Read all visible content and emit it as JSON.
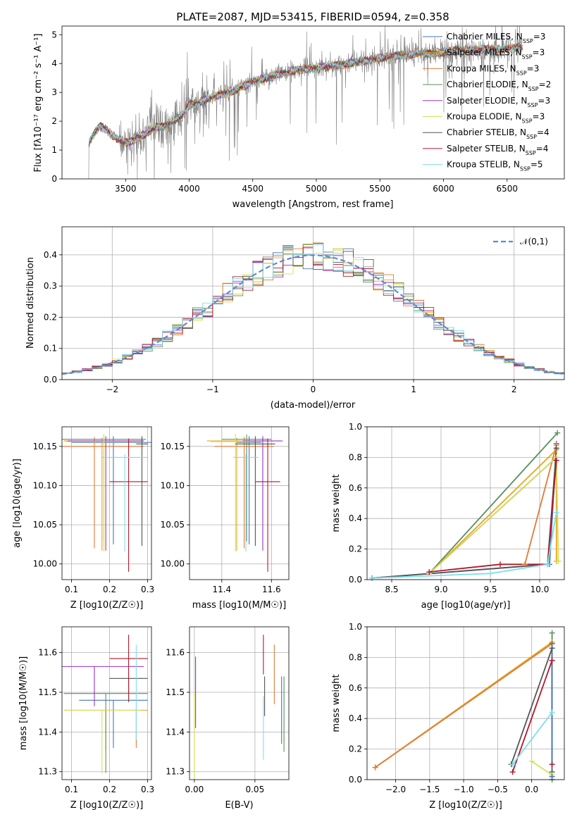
{
  "figure": {
    "title": "PLATE=2087, MJD=53415, FIBERID=0594, z=0.358"
  },
  "chart_data": [
    {
      "id": "spectrum",
      "type": "line",
      "xlabel": "wavelength [Angstrom, rest frame]",
      "ylabel": "Flux [f_λ 10^-17 erg cm^-2 s^-1 A^-1]",
      "xlim": [
        3000,
        6950
      ],
      "ylim": [
        0,
        5.3
      ],
      "xticks": [
        3500,
        4000,
        4500,
        5000,
        5500,
        6000,
        6500
      ],
      "yticks": [
        0,
        1,
        2,
        3,
        4,
        5
      ],
      "grid": false,
      "legend_position": "top-right",
      "data_color": "#808080",
      "continuum": {
        "x": [
          3210,
          3250,
          3300,
          3350,
          3400,
          3450,
          3500,
          3550,
          3600,
          3650,
          3700,
          3750,
          3800,
          3850,
          3900,
          3950,
          4000,
          4100,
          4200,
          4300,
          4400,
          4500,
          4600,
          4700,
          4800,
          4900,
          5000,
          5100,
          5200,
          5300,
          5400,
          5500,
          5600,
          5700,
          5800,
          5900,
          6000,
          6100,
          6200,
          6300,
          6400,
          6500,
          6600
        ],
        "y": [
          1.25,
          1.55,
          1.82,
          1.7,
          1.5,
          1.35,
          1.25,
          1.3,
          1.45,
          1.55,
          1.7,
          1.8,
          1.85,
          1.9,
          2.1,
          2.2,
          2.55,
          2.7,
          2.85,
          3.0,
          3.15,
          3.35,
          3.5,
          3.6,
          3.75,
          3.8,
          3.85,
          3.9,
          3.95,
          4.05,
          4.1,
          4.2,
          4.25,
          4.3,
          4.35,
          4.35,
          4.4,
          4.45,
          4.45,
          4.5,
          4.5,
          4.5,
          4.55
        ]
      },
      "series": [
        {
          "name": "Chabrier MILES, N_SSP=3",
          "color": "#4575b4"
        },
        {
          "name": "Salpeter MILES, N_SSP=3",
          "color": "#e6a817"
        },
        {
          "name": "Kroupa MILES, N_SSP=3",
          "color": "#e07b39"
        },
        {
          "name": "Chabrier ELODIE, N_SSP=2",
          "color": "#5a8f5a"
        },
        {
          "name": "Salpeter ELODIE, N_SSP=3",
          "color": "#9b30c8"
        },
        {
          "name": "Kroupa ELODIE, N_SSP=3",
          "color": "#d4e157"
        },
        {
          "name": "Chabrier STELIB, N_SSP=4",
          "color": "#555555"
        },
        {
          "name": "Salpeter STELIB, N_SSP=4",
          "color": "#b2182b"
        },
        {
          "name": "Kroupa STELIB, N_SSP=5",
          "color": "#80deea"
        }
      ]
    },
    {
      "id": "residuals",
      "type": "line",
      "xlabel": "(data-model)/error",
      "ylabel": "Normed distribution",
      "xlim": [
        -2.5,
        2.5
      ],
      "ylim": [
        0,
        0.49
      ],
      "xticks": [
        -2,
        -1,
        0,
        1,
        2
      ],
      "yticks": [
        0.0,
        0.1,
        0.2,
        0.3,
        0.4
      ],
      "grid": true,
      "legend_position": "top-right",
      "reference": {
        "name": "𝒩(0,1)",
        "color": "#5b8bd6"
      }
    },
    {
      "id": "age-vs-Z",
      "type": "scatter",
      "xlabel": "Z [log10(Z/Z☉)]",
      "ylabel": "age  [log10(age/yr)]",
      "xlim": [
        0.075,
        0.31
      ],
      "ylim": [
        9.98,
        10.175
      ],
      "xticks": [
        0.1,
        0.2,
        0.3
      ],
      "yticks": [
        10.0,
        10.05,
        10.1,
        10.15
      ],
      "grid": true,
      "points": [
        {
          "series": 0,
          "x": 0.21,
          "y": 10.155,
          "xerr": 0.11,
          "yerr_lo": 0.13,
          "yerr_hi": 0.008
        },
        {
          "series": 1,
          "x": 0.18,
          "y": 10.157,
          "xerr": 0.1,
          "yerr_lo": 0.14,
          "yerr_hi": 0.004
        },
        {
          "series": 2,
          "x": 0.16,
          "y": 10.15,
          "xerr": 0.13,
          "yerr_lo": 0.13,
          "yerr_hi": 0.012
        },
        {
          "series": 3,
          "x": 0.185,
          "y": 10.159,
          "xerr": 0.11,
          "yerr_lo": 0.13,
          "yerr_hi": 0.004
        },
        {
          "series": 4,
          "x": 0.19,
          "y": 10.157,
          "xerr": 0.1,
          "yerr_lo": 0.14,
          "yerr_hi": 0.006
        },
        {
          "series": 5,
          "x": 0.185,
          "y": 10.156,
          "xerr": 0.1,
          "yerr_lo": 0.14,
          "yerr_hi": 0.01
        },
        {
          "series": 6,
          "x": 0.285,
          "y": 10.153,
          "xerr": 0.015,
          "yerr_lo": 0.13,
          "yerr_hi": 0.01
        },
        {
          "series": 7,
          "x": 0.25,
          "y": 10.105,
          "xerr": 0.05,
          "yerr_lo": 0.115,
          "yerr_hi": 0.055
        },
        {
          "series": 8,
          "x": 0.24,
          "y": 10.136,
          "xerr": 0.06,
          "yerr_lo": 0.12,
          "yerr_hi": 0.004
        }
      ]
    },
    {
      "id": "age-vs-mass",
      "type": "scatter",
      "xlabel": "mass [log10(M/M☉)]",
      "ylabel": "",
      "xlim": [
        11.27,
        11.67
      ],
      "ylim": [
        9.98,
        10.175
      ],
      "xticks": [
        11.4,
        11.6
      ],
      "yticks": [
        10.0,
        10.05,
        10.1,
        10.15
      ],
      "grid": true,
      "points": [
        {
          "series": 0,
          "x": 11.51,
          "y": 10.155,
          "xerr": 0.05,
          "yerr_lo": 0.13,
          "yerr_hi": 0.008
        },
        {
          "series": 1,
          "x": 11.46,
          "y": 10.157,
          "xerr": 0.12,
          "yerr_lo": 0.14,
          "yerr_hi": 0.004
        },
        {
          "series": 2,
          "x": 11.49,
          "y": 10.15,
          "xerr": 0.12,
          "yerr_lo": 0.13,
          "yerr_hi": 0.012
        },
        {
          "series": 3,
          "x": 11.5,
          "y": 10.159,
          "xerr": 0.1,
          "yerr_lo": 0.13,
          "yerr_hi": 0.006
        },
        {
          "series": 4,
          "x": 11.565,
          "y": 10.157,
          "xerr": 0.08,
          "yerr_lo": 0.14,
          "yerr_hi": 0.006
        },
        {
          "series": 5,
          "x": 11.455,
          "y": 10.156,
          "xerr": 0.1,
          "yerr_lo": 0.14,
          "yerr_hi": 0.01
        },
        {
          "series": 6,
          "x": 11.535,
          "y": 10.153,
          "xerr": 0.08,
          "yerr_lo": 0.13,
          "yerr_hi": 0.01
        },
        {
          "series": 7,
          "x": 11.585,
          "y": 10.105,
          "xerr": 0.05,
          "yerr_lo": 0.115,
          "yerr_hi": 0.055
        },
        {
          "series": 8,
          "x": 11.497,
          "y": 10.136,
          "xerr": 0.05,
          "yerr_lo": 0.12,
          "yerr_hi": 0.004
        }
      ]
    },
    {
      "id": "weight-vs-age",
      "type": "line",
      "xlabel": "age  [log10(age/yr)]",
      "ylabel": "mass weight",
      "xlim": [
        8.25,
        10.25
      ],
      "ylim": [
        0,
        1.0
      ],
      "xticks": [
        8.5,
        9.0,
        9.5,
        10.0
      ],
      "yticks": [
        0.0,
        0.2,
        0.4,
        0.6,
        0.8,
        1.0
      ],
      "grid": true,
      "series": [
        {
          "series": 0,
          "x": [
            8.3,
            10.1,
            10.17
          ],
          "y": [
            0.01,
            0.1,
            0.89
          ]
        },
        {
          "series": 1,
          "x": [
            8.88,
            10.17,
            10.17
          ],
          "y": [
            0.04,
            0.85,
            0.12
          ]
        },
        {
          "series": 2,
          "x": [
            9.85,
            10.17
          ],
          "y": [
            0.1,
            0.88
          ]
        },
        {
          "series": 3,
          "x": [
            8.88,
            10.18
          ],
          "y": [
            0.04,
            0.96
          ]
        },
        {
          "series": 4,
          "x": [
            8.88,
            10.17
          ],
          "y": [
            0.04,
            0.8
          ]
        },
        {
          "series": 5,
          "x": [
            8.88,
            10.17,
            10.19
          ],
          "y": [
            0.04,
            0.8,
            0.12
          ]
        },
        {
          "series": 6,
          "x": [
            8.3,
            10.08,
            10.17
          ],
          "y": [
            0.01,
            0.1,
            0.86
          ]
        },
        {
          "series": 7,
          "x": [
            8.88,
            9.6,
            10.08,
            10.17
          ],
          "y": [
            0.05,
            0.1,
            0.1,
            0.78
          ]
        },
        {
          "series": 8,
          "x": [
            8.3,
            9.5,
            10.08,
            10.17
          ],
          "y": [
            0.01,
            0.04,
            0.1,
            0.44
          ]
        }
      ]
    },
    {
      "id": "mass-vs-Z",
      "type": "scatter",
      "xlabel": "Z [log10(Z/Z☉)]",
      "ylabel": "mass [log10(M/M☉)]",
      "xlim": [
        0.075,
        0.31
      ],
      "ylim": [
        11.28,
        11.665
      ],
      "xticks": [
        0.1,
        0.2,
        0.3
      ],
      "yticks": [
        11.3,
        11.4,
        11.5,
        11.6
      ],
      "grid": true,
      "points": [
        {
          "series": 0,
          "x": 0.21,
          "y": 11.48,
          "xerr": 0.09,
          "yerr_lo": 0.12,
          "yerr_hi": 0.0
        },
        {
          "series": 1,
          "x": 0.19,
          "y": 11.455,
          "xerr": 0.11,
          "yerr_lo": 0.1,
          "yerr_hi": 0.0
        },
        {
          "series": 2,
          "x": 0.27,
          "y": 11.46,
          "xerr": 0.0,
          "yerr_lo": 0.1,
          "yerr_hi": 0.0
        },
        {
          "series": 3,
          "x": 0.19,
          "y": 11.497,
          "xerr": 0.11,
          "yerr_lo": 0.2,
          "yerr_hi": 0.0
        },
        {
          "series": 4,
          "x": 0.16,
          "y": 11.565,
          "xerr": 0.13,
          "yerr_lo": 0.1,
          "yerr_hi": 0.0
        },
        {
          "series": 5,
          "x": 0.18,
          "y": 11.455,
          "xerr": 0.1,
          "yerr_lo": 0.16,
          "yerr_hi": 0.0
        },
        {
          "series": 6,
          "x": 0.25,
          "y": 11.535,
          "xerr": 0.05,
          "yerr_lo": 0.06,
          "yerr_hi": 0.0
        },
        {
          "series": 7,
          "x": 0.25,
          "y": 11.585,
          "xerr": 0.05,
          "yerr_lo": 0.105,
          "yerr_hi": 0.06
        },
        {
          "series": 8,
          "x": 0.27,
          "y": 11.5,
          "xerr": 0.0,
          "yerr_lo": 0.12,
          "yerr_hi": 0.12
        }
      ]
    },
    {
      "id": "mass-vs-EBV",
      "type": "scatter",
      "xlabel": "E(B-V)",
      "ylabel": "",
      "xlim": [
        -0.004,
        0.078
      ],
      "ylim": [
        11.28,
        11.665
      ],
      "xticks": [
        0.0,
        0.05
      ],
      "yticks": [
        11.3,
        11.4,
        11.5,
        11.6
      ],
      "grid": true,
      "points": [
        {
          "series": 4,
          "x": 0.001,
          "y": 11.5,
          "yerr_lo": 0.09,
          "yerr_hi": 0.09
        },
        {
          "series": 5,
          "x": 0.0,
          "y": 11.4,
          "yerr_lo": 0.12,
          "yerr_hi": 0.1
        },
        {
          "series": 7,
          "x": 0.057,
          "y": 11.585,
          "yerr_lo": 0.04,
          "yerr_hi": 0.06
        },
        {
          "series": 8,
          "x": 0.057,
          "y": 11.4,
          "yerr_lo": 0.07,
          "yerr_hi": 0.09
        },
        {
          "series": 6,
          "x": 0.058,
          "y": 11.5,
          "yerr_lo": 0.06,
          "yerr_hi": 0.04
        },
        {
          "series": 2,
          "x": 0.066,
          "y": 11.55,
          "yerr_lo": 0.08,
          "yerr_hi": 0.07
        },
        {
          "series": 0,
          "x": 0.072,
          "y": 11.45,
          "yerr_lo": 0.08,
          "yerr_hi": 0.09
        },
        {
          "series": 3,
          "x": 0.074,
          "y": 11.45,
          "yerr_lo": 0.1,
          "yerr_hi": 0.09
        }
      ]
    },
    {
      "id": "weight-vs-Z",
      "type": "line",
      "xlabel": "Z [log10(Z/Z☉)]",
      "ylabel": "mass weight",
      "xlim": [
        -2.42,
        0.48
      ],
      "ylim": [
        0,
        1.0
      ],
      "xticks": [
        -2.0,
        -1.5,
        -1.0,
        -0.5,
        0.0
      ],
      "yticks": [
        0.0,
        0.2,
        0.4,
        0.6,
        0.8,
        1.0
      ],
      "grid": true,
      "series": [
        {
          "series": 3,
          "x": [
            0.3,
            0.3
          ],
          "y": [
            0.0,
            0.96
          ]
        },
        {
          "series": 6,
          "x": [
            -0.3,
            0.3,
            0.3
          ],
          "y": [
            0.1,
            0.86,
            0.05
          ]
        },
        {
          "series": 7,
          "x": [
            -0.28,
            0.3,
            0.3
          ],
          "y": [
            0.05,
            0.78,
            0.1
          ]
        },
        {
          "series": 8,
          "x": [
            -0.28,
            0.3,
            0.3
          ],
          "y": [
            0.1,
            0.44,
            0.02
          ]
        },
        {
          "series": 5,
          "x": [
            0.0,
            0.3
          ],
          "y": [
            0.12,
            0.03
          ]
        },
        {
          "series": 1,
          "x": [
            -2.3,
            0.3
          ],
          "y": [
            0.08,
            0.9
          ]
        },
        {
          "series": 2,
          "x": [
            -2.3,
            0.3
          ],
          "y": [
            0.08,
            0.89
          ]
        },
        {
          "series": 0,
          "x": [
            0.3,
            0.3
          ],
          "y": [
            0.02,
            0.89
          ]
        }
      ]
    }
  ]
}
